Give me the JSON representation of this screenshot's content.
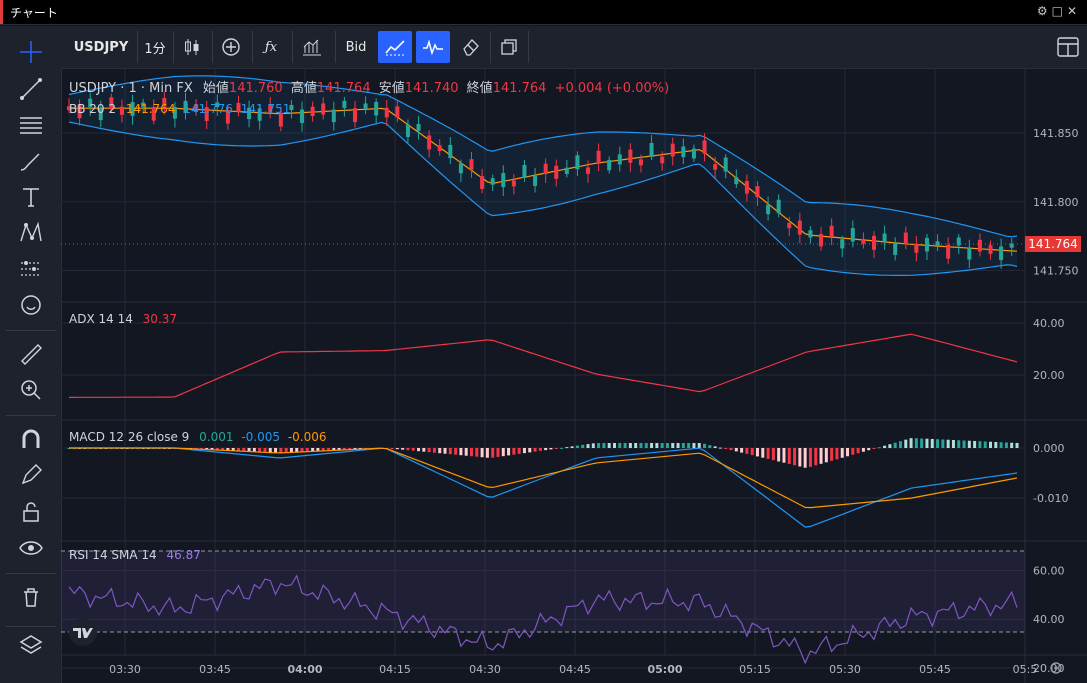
{
  "window": {
    "title": "チャート"
  },
  "toolbar": {
    "symbol": "USDJPY",
    "interval": "1分",
    "price_type": "Bid"
  },
  "legend": {
    "main_title": "USDJPY · 1 · Min FX",
    "open_label": "始値",
    "open": "141.760",
    "high_label": "高値",
    "high": "141.764",
    "low_label": "安値",
    "low": "141.740",
    "close_label": "終値",
    "close": "141.764",
    "change": "+0.004 (+0.00%)",
    "bb_label": "BB 20 2",
    "bb_mid": "141.764",
    "bb_upper": "141.776",
    "bb_lower": "141.751",
    "adx_label": "ADX 14 14",
    "adx_value": "30.37",
    "macd_label": "MACD 12 26 close 9",
    "macd_hist": "0.001",
    "macd_line": "-0.005",
    "macd_signal": "-0.006",
    "rsi_label": "RSI 14 SMA 14",
    "rsi_value": "46.87"
  },
  "price_tag": "141.764",
  "axes": {
    "price_ticks": [
      "141.850",
      "141.800",
      "141.750"
    ],
    "adx_ticks": [
      "40.00",
      "20.00"
    ],
    "macd_ticks": [
      "0.000",
      "-0.010"
    ],
    "rsi_ticks": [
      "60.00",
      "40.00",
      "20.00"
    ],
    "time_ticks": [
      "03:30",
      "03:45",
      "04:00",
      "04:15",
      "04:30",
      "04:45",
      "05:00",
      "05:15",
      "05:30",
      "05:45",
      "05:5"
    ]
  },
  "colors": {
    "up": "#26a69a",
    "down": "#f23645",
    "bb": "#2196f3",
    "bb_mid": "#ff9800",
    "adx": "#f23645",
    "rsi": "#7e57c2",
    "accent": "#2962ff"
  },
  "icons": {
    "left_toolbar": [
      "crosshair-icon",
      "trend-line-icon",
      "fib-icon",
      "brush-icon",
      "text-icon",
      "pattern-icon",
      "forecast-icon",
      "emoji-icon",
      "ruler-icon",
      "zoom-icon",
      "magnet-icon",
      "lock-draw-icon",
      "unlock-icon",
      "eye-icon",
      "trash-icon",
      "layers-icon"
    ]
  },
  "chart_data": [
    {
      "type": "line",
      "title": "USDJPY · 1 · Min FX",
      "x": [
        "03:30",
        "03:45",
        "04:00",
        "04:15",
        "04:30",
        "04:45",
        "05:00",
        "05:15",
        "05:30",
        "05:45"
      ],
      "series": [
        {
          "name": "BB 20 2",
          "values": [
            141.868,
            141.868,
            141.864,
            141.868,
            141.813,
            141.828,
            141.838,
            141.776,
            141.769,
            141.764
          ]
        }
      ],
      "ylim": [
        141.73,
        141.89
      ]
    },
    {
      "type": "line",
      "title": "ADX 14 14",
      "x": [
        "03:30",
        "03:45",
        "04:00",
        "04:15",
        "04:30",
        "04:45",
        "05:00",
        "05:15",
        "05:30",
        "05:45"
      ],
      "series": [
        {
          "name": "ADX 14 14",
          "values": [
            17.5,
            17.6,
            34.0,
            34.5,
            38.5,
            26.0,
            19.5,
            34.0,
            40.5,
            30.4
          ]
        }
      ],
      "ylim": [
        10,
        50
      ]
    },
    {
      "type": "line",
      "title": "MACD 12 26 close 9",
      "x": [
        "03:30",
        "03:45",
        "04:00",
        "04:15",
        "04:30",
        "04:45",
        "05:00",
        "05:15",
        "05:30",
        "05:45"
      ],
      "series": [
        {
          "name": "MACD",
          "values": [
            0.0,
            0.0,
            -0.002,
            0.0,
            -0.01,
            -0.002,
            0.0,
            -0.016,
            -0.008,
            -0.005
          ]
        },
        {
          "name": "signal",
          "values": [
            0.0,
            0.0,
            -0.001,
            0.0,
            -0.008,
            -0.003,
            -0.001,
            -0.012,
            -0.01,
            -0.006
          ]
        }
      ],
      "ylim": [
        -0.018,
        0.004
      ]
    },
    {
      "type": "line",
      "title": "RSI 14 SMA 14",
      "x": [
        "03:30",
        "03:45",
        "04:00",
        "04:15",
        "04:30",
        "04:45",
        "05:00",
        "05:15",
        "05:30",
        "05:45"
      ],
      "series": [
        {
          "name": "RSI 14",
          "values": [
            51,
            44,
            55,
            43,
            29,
            48,
            47,
            26,
            41,
            46.87
          ]
        }
      ],
      "ylim": [
        20,
        70
      ]
    }
  ]
}
